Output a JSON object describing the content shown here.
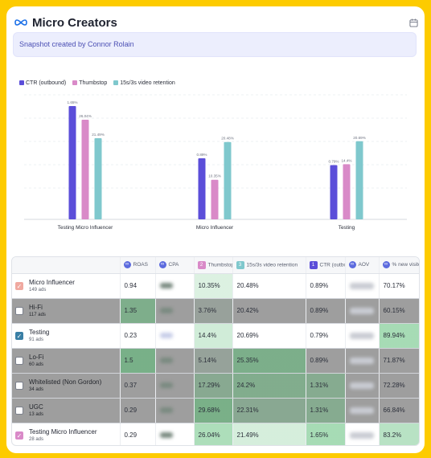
{
  "header": {
    "title": "Micro Creators"
  },
  "snapshot": {
    "text": "Snapshot created by Connor Rolain"
  },
  "legend": [
    {
      "label": "CTR (outbound)",
      "color": "#5b4ed9"
    },
    {
      "label": "Thumbstop",
      "color": "#d98ac8"
    },
    {
      "label": "15s/3s video retention",
      "color": "#7fc8cd"
    }
  ],
  "chart_data": {
    "type": "bar",
    "categories": [
      "Testing Micro Influencer",
      "Micro Influencer",
      "Testing"
    ],
    "series": [
      {
        "name": "CTR (outbound)",
        "values": [
          1.65,
          0.89,
          0.79
        ],
        "labels": [
          "1.65%",
          "0.89%",
          "0.79%"
        ],
        "color": "#5b4ed9"
      },
      {
        "name": "Thumbstop",
        "values": [
          26.04,
          10.35,
          14.4
        ],
        "labels": [
          "26.04%",
          "10.35%",
          "14.4%"
        ],
        "color": "#d98ac8"
      },
      {
        "name": "15s/3s video retention",
        "values": [
          21.49,
          20.48,
          20.69
        ],
        "labels": [
          "21.49%",
          "20.48%",
          "20.69%"
        ],
        "color": "#7fc8cd"
      }
    ],
    "grid": true,
    "legend_position": "top-left"
  },
  "table": {
    "columns": [
      {
        "label": "",
        "icon": ""
      },
      {
        "label": "ROAS",
        "icon": "meta"
      },
      {
        "label": "CPA",
        "icon": "meta"
      },
      {
        "label": "Thumbstop",
        "icon": "2",
        "color": "#d98ac8"
      },
      {
        "label": "15s/3s video retention",
        "icon": "3",
        "color": "#7fc8cd"
      },
      {
        "label": "CTR (outbound)",
        "icon": "1",
        "color": "#5b4ed9"
      },
      {
        "label": "AOV",
        "icon": "meta"
      },
      {
        "label": "% new visitors",
        "icon": "meta"
      }
    ],
    "rows": [
      {
        "name": "Micro Influencer",
        "ads": "149 ads",
        "checked": true,
        "check_color": "#f0a9a0",
        "dim": false,
        "roas": "0.94",
        "thumbstop": "10.35%",
        "retention": "20.48%",
        "ctr": "0.89%",
        "new_visitors": "70.17%"
      },
      {
        "name": "Hi-Fi",
        "ads": "117 ads",
        "checked": false,
        "dim": true,
        "roas": "1.35",
        "thumbstop": "3.76%",
        "retention": "20.42%",
        "ctr": "0.89%",
        "new_visitors": "60.15%"
      },
      {
        "name": "Testing",
        "ads": "91 ads",
        "checked": true,
        "check_color": "#3a7fa5",
        "dim": false,
        "roas": "0.23",
        "thumbstop": "14.4%",
        "retention": "20.69%",
        "ctr": "0.79%",
        "new_visitors": "89.94%"
      },
      {
        "name": "Lo-Fi",
        "ads": "60 ads",
        "checked": false,
        "dim": true,
        "roas": "1.5",
        "thumbstop": "5.14%",
        "retention": "25.35%",
        "ctr": "0.89%",
        "new_visitors": "71.87%"
      },
      {
        "name": "Whitelisted (Non Gordon)",
        "ads": "34 ads",
        "checked": false,
        "dim": true,
        "roas": "0.37",
        "thumbstop": "17.29%",
        "retention": "24.2%",
        "ctr": "1.31%",
        "new_visitors": "72.28%"
      },
      {
        "name": "UGC",
        "ads": "13 ads",
        "checked": false,
        "dim": true,
        "roas": "0.29",
        "thumbstop": "29.68%",
        "retention": "22.31%",
        "ctr": "1.31%",
        "new_visitors": "66.84%"
      },
      {
        "name": "Testing Micro Influencer",
        "ads": "28 ads",
        "checked": true,
        "check_color": "#d98ac8",
        "dim": false,
        "roas": "0.29",
        "thumbstop": "26.04%",
        "retention": "21.49%",
        "ctr": "1.65%",
        "new_visitors": "83.2%"
      }
    ]
  }
}
